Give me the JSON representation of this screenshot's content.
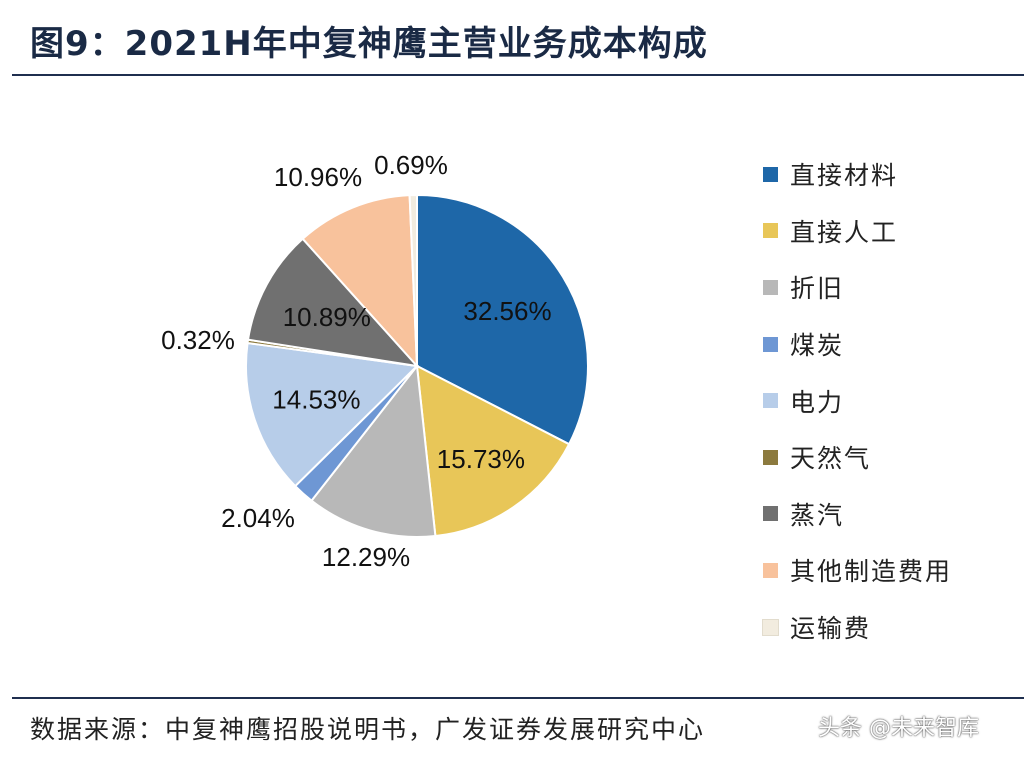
{
  "header": {
    "title": "图9：2021H年中复神鹰主营业务成本构成"
  },
  "footer": {
    "source": "数据来源：中复神鹰招股说明书，广发证券发展研究中心",
    "watermark": "头条 @未来智库"
  },
  "chart_data": {
    "type": "pie",
    "title": "2021H年中复神鹰主营业务成本构成",
    "start_angle_deg": 0,
    "direction": "clockwise",
    "legend_position": "right",
    "slices": [
      {
        "label": "直接材料",
        "value": 32.56,
        "display": "32.56%",
        "color": "#1e67a8",
        "label_placement": "inside"
      },
      {
        "label": "直接人工",
        "value": 15.73,
        "display": "15.73%",
        "color": "#e8c658",
        "label_placement": "inside"
      },
      {
        "label": "折旧",
        "value": 12.29,
        "display": "12.29%",
        "color": "#b8b8b8",
        "label_placement": "outside"
      },
      {
        "label": "煤炭",
        "value": 2.04,
        "display": "2.04%",
        "color": "#6e97d4",
        "label_placement": "outside"
      },
      {
        "label": "电力",
        "value": 14.53,
        "display": "14.53%",
        "color": "#b7cde9",
        "label_placement": "inside"
      },
      {
        "label": "天然气",
        "value": 0.32,
        "display": "0.32%",
        "color": "#8c7a3e",
        "label_placement": "outside"
      },
      {
        "label": "蒸汽",
        "value": 10.89,
        "display": "10.89%",
        "color": "#707070",
        "label_placement": "inside"
      },
      {
        "label": "其他制造费用",
        "value": 10.96,
        "display": "10.96%",
        "color": "#f8c29c",
        "label_placement": "outside"
      },
      {
        "label": "运输费",
        "value": 0.69,
        "display": "0.69%",
        "color": "#f2ecdf",
        "label_placement": "outside"
      }
    ]
  }
}
